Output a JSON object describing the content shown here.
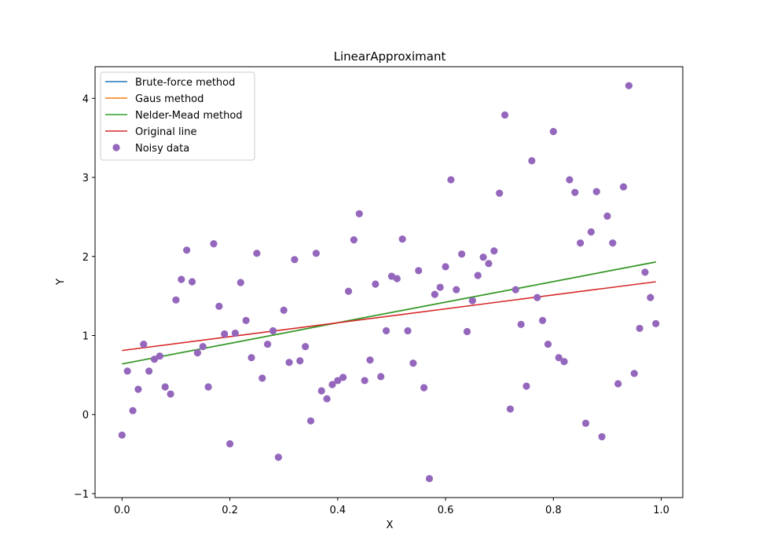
{
  "chart_data": {
    "type": "scatter",
    "title": "LinearApproximant",
    "xlabel": "X",
    "ylabel": "Y",
    "xlim": [
      -0.05,
      1.04
    ],
    "ylim": [
      -1.05,
      4.4
    ],
    "xticks": [
      0.0,
      0.2,
      0.4,
      0.6,
      0.8,
      1.0
    ],
    "xtick_labels": [
      "0.0",
      "0.2",
      "0.4",
      "0.6",
      "0.8",
      "1.0"
    ],
    "yticks": [
      -1,
      0,
      1,
      2,
      3,
      4
    ],
    "ytick_labels": [
      "−1",
      "0",
      "1",
      "2",
      "3",
      "4"
    ],
    "grid": false,
    "legend_position": "top-left",
    "series": [
      {
        "name": "Brute-force method",
        "kind": "line",
        "color": "#1f77b4",
        "x": [
          0.0,
          0.99
        ],
        "y": [
          0.64,
          1.93
        ]
      },
      {
        "name": "Gaus method",
        "kind": "line",
        "color": "#ff7f0e",
        "x": [
          0.0,
          0.99
        ],
        "y": [
          0.64,
          1.93
        ]
      },
      {
        "name": "Nelder-Mead method",
        "kind": "line",
        "color": "#2ca02c",
        "x": [
          0.0,
          0.99
        ],
        "y": [
          0.64,
          1.93
        ]
      },
      {
        "name": "Original line",
        "kind": "line",
        "color": "#d62728",
        "x": [
          0.0,
          0.99
        ],
        "y": [
          0.81,
          1.68
        ]
      },
      {
        "name": "Noisy data",
        "kind": "scatter",
        "color": "#9467bd",
        "x": [
          0.0,
          0.01,
          0.02,
          0.03,
          0.04,
          0.05,
          0.06,
          0.07,
          0.08,
          0.09,
          0.1,
          0.11,
          0.12,
          0.13,
          0.14,
          0.15,
          0.16,
          0.17,
          0.18,
          0.19,
          0.2,
          0.21,
          0.22,
          0.23,
          0.24,
          0.25,
          0.26,
          0.27,
          0.28,
          0.29,
          0.3,
          0.31,
          0.32,
          0.33,
          0.34,
          0.35,
          0.36,
          0.37,
          0.38,
          0.39,
          0.4,
          0.41,
          0.42,
          0.43,
          0.44,
          0.45,
          0.46,
          0.47,
          0.48,
          0.49,
          0.5,
          0.51,
          0.52,
          0.53,
          0.54,
          0.55,
          0.56,
          0.57,
          0.58,
          0.59,
          0.6,
          0.61,
          0.62,
          0.63,
          0.64,
          0.65,
          0.66,
          0.67,
          0.68,
          0.69,
          0.7,
          0.71,
          0.72,
          0.73,
          0.74,
          0.75,
          0.76,
          0.77,
          0.78,
          0.79,
          0.8,
          0.81,
          0.82,
          0.83,
          0.84,
          0.85,
          0.86,
          0.87,
          0.88,
          0.89,
          0.9,
          0.91,
          0.92,
          0.93,
          0.94,
          0.95,
          0.96,
          0.97,
          0.98,
          0.99
        ],
        "y": [
          -0.26,
          0.55,
          0.05,
          0.32,
          0.89,
          0.55,
          0.7,
          0.74,
          0.35,
          0.26,
          1.45,
          1.71,
          2.08,
          1.68,
          0.78,
          0.86,
          0.35,
          2.16,
          1.37,
          1.02,
          -0.37,
          1.03,
          1.67,
          1.19,
          0.72,
          2.04,
          0.46,
          0.89,
          1.06,
          -0.54,
          1.32,
          0.66,
          1.96,
          0.68,
          0.86,
          -0.08,
          2.04,
          0.3,
          0.2,
          0.38,
          0.43,
          0.47,
          1.56,
          2.21,
          2.54,
          0.43,
          0.69,
          1.65,
          0.48,
          1.06,
          1.75,
          1.72,
          2.22,
          1.06,
          0.65,
          1.82,
          0.34,
          -0.81,
          1.52,
          1.61,
          1.87,
          2.97,
          1.58,
          2.03,
          1.05,
          1.44,
          1.76,
          1.99,
          1.91,
          2.07,
          2.8,
          3.79,
          0.07,
          1.58,
          1.14,
          0.36,
          3.21,
          1.48,
          1.19,
          0.89,
          3.58,
          0.72,
          0.67,
          2.97,
          2.81,
          2.17,
          -0.11,
          2.31,
          2.82,
          -0.28,
          2.51,
          2.17,
          0.39,
          2.88,
          4.16,
          0.52,
          1.09,
          1.8,
          1.48,
          1.15
        ]
      }
    ]
  }
}
